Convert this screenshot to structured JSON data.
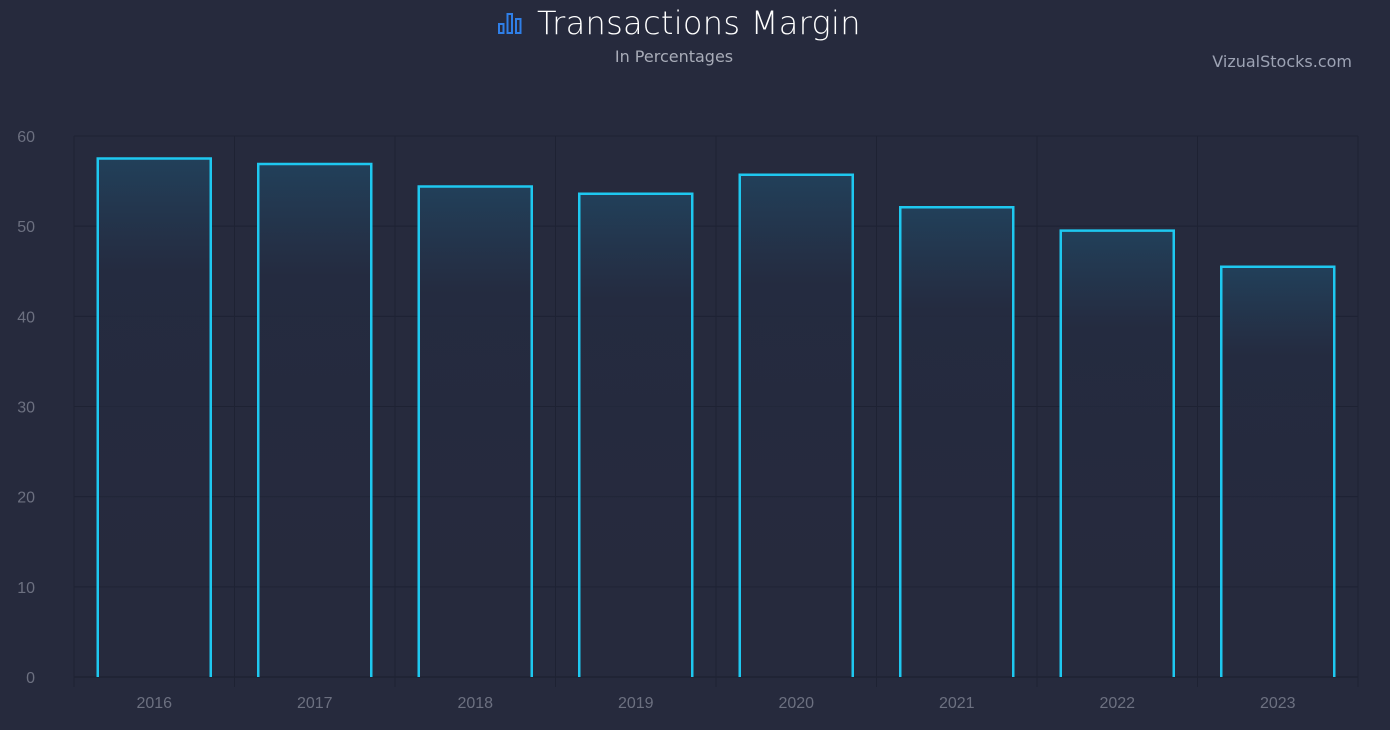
{
  "header": {
    "title": "Transactions Margin",
    "subtitle": "In Percentages",
    "watermark": "VizualStocks.com",
    "icon": "bar-chart-icon"
  },
  "colors": {
    "background": "#262a3d",
    "bar_stroke": "#1ec8f0",
    "bar_fill_top": "#22405a",
    "icon": "#2f7fe8",
    "grid": "#1e2233",
    "tick_label": "#6c7080"
  },
  "chart_data": {
    "type": "bar",
    "title": "Transactions Margin",
    "subtitle": "In Percentages",
    "xlabel": "",
    "ylabel": "",
    "categories": [
      "2016",
      "2017",
      "2018",
      "2019",
      "2020",
      "2021",
      "2022",
      "2023"
    ],
    "values": [
      57.5,
      56.9,
      54.4,
      53.6,
      55.7,
      52.1,
      49.5,
      45.5
    ],
    "ylim": [
      0,
      60
    ],
    "yticks": [
      "0",
      "10",
      "20",
      "30",
      "40",
      "50",
      "60"
    ],
    "grid": true,
    "legend": "none"
  }
}
